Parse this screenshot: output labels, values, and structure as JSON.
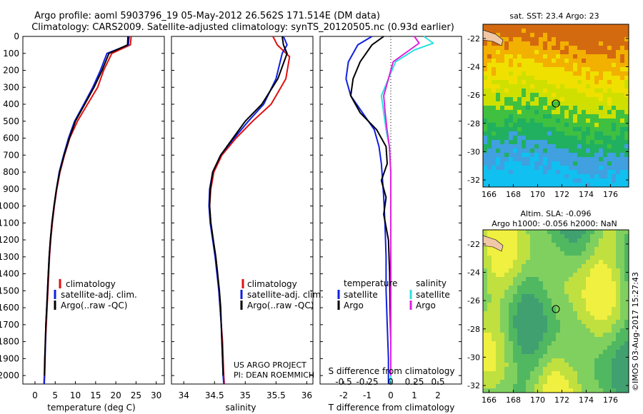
{
  "header": {
    "line1": "Argo profile: aoml 5903796_19 05-May-2012 26.562S 171.514E (DM data)",
    "line2": "Climatology: CARS2009. Satellite-adjusted climatology: synTS_20120505.nc (0.93d earlier)"
  },
  "depth_ticks": [
    0,
    100,
    200,
    300,
    400,
    500,
    600,
    700,
    800,
    900,
    1000,
    1100,
    1200,
    1300,
    1400,
    1500,
    1600,
    1700,
    1800,
    1900,
    2000
  ],
  "colors": {
    "clim": "#e01010",
    "sat": "#1020e0",
    "argo": "#000000",
    "sal_sat": "#30e0e0",
    "sal_argo": "#e020e0"
  },
  "panel_temp": {
    "xlabel": "temperature (deg C)",
    "xticks": [
      0,
      5,
      10,
      15,
      20,
      25,
      30
    ],
    "legend": [
      "climatology",
      "satellite-adj. clim.",
      "Argo(..raw -QC)"
    ]
  },
  "panel_sal": {
    "xlabel": "salinity",
    "xticks": [
      "34",
      "34.5",
      "35",
      "35.5",
      "36"
    ],
    "legend": [
      "climatology",
      "satellite-adj. clim.",
      "Argo(..raw -QC)"
    ],
    "note1": "US ARGO PROJECT",
    "note2": "PI: DEAN ROEMMICH"
  },
  "panel_diff": {
    "legend_temp_title": "temperature",
    "legend_sal_title": "salinity",
    "legend_satellite": "satellite",
    "legend_argo": "Argo",
    "s_label": "S difference from climatology",
    "s_ticks": [
      "-0.5",
      "-0.25",
      "0",
      "0.25",
      "0.5"
    ],
    "t_label": "T difference from climatology",
    "t_ticks": [
      "-2",
      "-1",
      "0",
      "1",
      "2"
    ]
  },
  "map_sst": {
    "title": "sat. SST: 23.4  Argo: 23",
    "yticks": [
      "-22",
      "-24",
      "-26",
      "-28",
      "-30",
      "-32"
    ],
    "xticks": [
      "166",
      "168",
      "170",
      "172",
      "174",
      "176"
    ]
  },
  "map_sla": {
    "title1": "Altim. SLA: -0.096",
    "title2": "Argo h1000: -0.056 h2000: NaN",
    "yticks": [
      "-22",
      "-24",
      "-26",
      "-28",
      "-30",
      "-32"
    ],
    "xticks": [
      "166",
      "168",
      "170",
      "172",
      "174",
      "176"
    ]
  },
  "credit": "©IMOS 03-Aug-2017 15:27:43",
  "chart_data": [
    {
      "type": "line",
      "title": "",
      "xlabel": "temperature (deg C)",
      "ylabel": "",
      "xlim": [
        -3,
        32
      ],
      "ylim": [
        2050,
        0
      ],
      "series": [
        {
          "name": "climatology",
          "color": "#e01010",
          "points": [
            [
              23.8,
              0
            ],
            [
              23.6,
              50
            ],
            [
              19,
              100
            ],
            [
              17,
              200
            ],
            [
              15.5,
              300
            ],
            [
              13,
              400
            ],
            [
              10.5,
              500
            ],
            [
              8.6,
              600
            ],
            [
              7.3,
              700
            ],
            [
              6.2,
              800
            ],
            [
              5.4,
              900
            ],
            [
              4.8,
              1000
            ],
            [
              4.3,
              1100
            ],
            [
              3.9,
              1200
            ],
            [
              3.6,
              1300
            ],
            [
              3.4,
              1400
            ],
            [
              3.2,
              1500
            ],
            [
              3.0,
              1600
            ],
            [
              2.8,
              1700
            ],
            [
              2.6,
              1800
            ],
            [
              2.4,
              1900
            ],
            [
              2.3,
              2000
            ],
            [
              2.2,
              2050
            ]
          ]
        },
        {
          "name": "satellite-adj. clim.",
          "color": "#1020e0",
          "points": [
            [
              23.3,
              0
            ],
            [
              23.1,
              50
            ],
            [
              17.8,
              100
            ],
            [
              16.2,
              200
            ],
            [
              14.3,
              300
            ],
            [
              12.1,
              400
            ],
            [
              9.8,
              500
            ],
            [
              8.3,
              600
            ],
            [
              7.1,
              700
            ],
            [
              6.0,
              800
            ],
            [
              5.3,
              900
            ],
            [
              4.7,
              1000
            ],
            [
              4.2,
              1100
            ],
            [
              3.8,
              1200
            ],
            [
              3.5,
              1300
            ],
            [
              3.3,
              1400
            ],
            [
              3.1,
              1500
            ],
            [
              2.9,
              1600
            ],
            [
              2.7,
              1700
            ],
            [
              2.6,
              1800
            ],
            [
              2.5,
              1900
            ],
            [
              2.4,
              2000
            ],
            [
              2.3,
              2050
            ]
          ]
        },
        {
          "name": "Argo(..raw -QC)",
          "color": "#000000",
          "points": [
            [
              23.0,
              0
            ],
            [
              22.9,
              50
            ],
            [
              18.3,
              100
            ],
            [
              16.6,
              200
            ],
            [
              14.6,
              300
            ],
            [
              12.3,
              400
            ],
            [
              10.0,
              500
            ],
            [
              8.5,
              600
            ],
            [
              7.2,
              700
            ],
            [
              6.1,
              800
            ],
            [
              5.3,
              900
            ],
            [
              4.7,
              1000
            ],
            [
              4.2,
              1100
            ],
            [
              3.8,
              1200
            ],
            [
              3.5,
              1300
            ],
            [
              3.3,
              1400
            ],
            [
              3.1,
              1500
            ],
            [
              2.9,
              1600
            ],
            [
              2.7,
              1700
            ],
            [
              2.55,
              1800
            ],
            [
              2.45,
              1900
            ],
            [
              2.35,
              2000
            ]
          ]
        }
      ]
    },
    {
      "type": "line",
      "title": "",
      "xlabel": "salinity",
      "ylabel": "",
      "xlim": [
        33.8,
        36.1
      ],
      "ylim": [
        2050,
        0
      ],
      "series": [
        {
          "name": "climatology",
          "color": "#e01010",
          "points": [
            [
              35.45,
              0
            ],
            [
              35.52,
              50
            ],
            [
              35.72,
              120
            ],
            [
              35.66,
              250
            ],
            [
              35.42,
              400
            ],
            [
              35.12,
              500
            ],
            [
              34.85,
              600
            ],
            [
              34.62,
              700
            ],
            [
              34.49,
              800
            ],
            [
              34.44,
              900
            ],
            [
              34.42,
              1000
            ],
            [
              34.44,
              1100
            ],
            [
              34.48,
              1200
            ],
            [
              34.52,
              1300
            ],
            [
              34.55,
              1400
            ],
            [
              34.57,
              1500
            ],
            [
              34.59,
              1600
            ],
            [
              34.61,
              1700
            ],
            [
              34.63,
              1800
            ],
            [
              34.64,
              1900
            ],
            [
              34.65,
              2000
            ],
            [
              34.66,
              2050
            ]
          ]
        },
        {
          "name": "satellite-adj. clim.",
          "color": "#1020e0",
          "points": [
            [
              35.62,
              0
            ],
            [
              35.68,
              50
            ],
            [
              35.6,
              100
            ],
            [
              35.5,
              250
            ],
            [
              35.3,
              400
            ],
            [
              35.05,
              500
            ],
            [
              34.82,
              600
            ],
            [
              34.6,
              700
            ],
            [
              34.47,
              800
            ],
            [
              34.42,
              900
            ],
            [
              34.41,
              1000
            ],
            [
              34.43,
              1100
            ],
            [
              34.47,
              1200
            ],
            [
              34.51,
              1300
            ],
            [
              34.54,
              1400
            ],
            [
              34.57,
              1500
            ],
            [
              34.59,
              1600
            ],
            [
              34.61,
              1700
            ],
            [
              34.62,
              1800
            ],
            [
              34.63,
              1900
            ],
            [
              34.64,
              2000
            ],
            [
              34.65,
              2050
            ]
          ]
        },
        {
          "name": "Argo(..raw -QC)",
          "color": "#000000",
          "points": [
            [
              35.6,
              0
            ],
            [
              35.62,
              50
            ],
            [
              35.68,
              100
            ],
            [
              35.53,
              250
            ],
            [
              35.27,
              400
            ],
            [
              35.0,
              500
            ],
            [
              34.8,
              600
            ],
            [
              34.6,
              700
            ],
            [
              34.47,
              800
            ],
            [
              34.43,
              900
            ],
            [
              34.42,
              1000
            ],
            [
              34.44,
              1100
            ],
            [
              34.48,
              1200
            ],
            [
              34.52,
              1300
            ],
            [
              34.55,
              1400
            ],
            [
              34.58,
              1500
            ],
            [
              34.6,
              1600
            ],
            [
              34.61,
              1700
            ],
            [
              34.62,
              1800
            ],
            [
              34.63,
              1900
            ],
            [
              34.64,
              2000
            ]
          ]
        }
      ]
    },
    {
      "type": "line",
      "title": "",
      "xlabel": "T difference from climatology",
      "x2label": "S difference from climatology",
      "xlim": [
        -3,
        3
      ],
      "ylim": [
        2050,
        0
      ],
      "series": [
        {
          "name": "temperature satellite",
          "color": "#1020e0",
          "points": [
            [
              -0.8,
              0
            ],
            [
              -1.4,
              50
            ],
            [
              -1.8,
              150
            ],
            [
              -1.9,
              250
            ],
            [
              -1.7,
              350
            ],
            [
              -1.2,
              450
            ],
            [
              -0.7,
              550
            ],
            [
              -0.5,
              650
            ],
            [
              -0.4,
              750
            ],
            [
              -0.35,
              850
            ],
            [
              -0.3,
              950
            ],
            [
              -0.25,
              1100
            ],
            [
              -0.2,
              1300
            ],
            [
              -0.2,
              1500
            ],
            [
              -0.15,
              1700
            ],
            [
              -0.1,
              1900
            ],
            [
              -0.1,
              2050
            ]
          ]
        },
        {
          "name": "temperature Argo",
          "color": "#000000",
          "points": [
            [
              -0.3,
              0
            ],
            [
              -0.8,
              50
            ],
            [
              -1.3,
              150
            ],
            [
              -1.6,
              250
            ],
            [
              -1.7,
              350
            ],
            [
              -1.3,
              450
            ],
            [
              -0.6,
              550
            ],
            [
              -0.2,
              650
            ],
            [
              -0.15,
              750
            ],
            [
              -0.4,
              850
            ],
            [
              -0.2,
              950
            ],
            [
              -0.3,
              1050
            ],
            [
              -0.1,
              1200
            ],
            [
              -0.05,
              1400
            ],
            [
              -0.03,
              1600
            ],
            [
              0.0,
              1800
            ],
            [
              0.0,
              2000
            ]
          ]
        },
        {
          "name": "salinity satellite",
          "color": "#30e0e0",
          "points": [
            [
              0.7,
              0
            ],
            [
              0.9,
              40
            ],
            [
              0.5,
              80
            ],
            [
              0.1,
              150
            ],
            [
              -0.05,
              250
            ],
            [
              -0.2,
              350
            ],
            [
              -0.15,
              450
            ],
            [
              -0.1,
              550
            ],
            [
              -0.03,
              650
            ],
            [
              0.0,
              800
            ],
            [
              0.0,
              1000
            ],
            [
              0.0,
              1200
            ],
            [
              0.0,
              1500
            ],
            [
              0.0,
              1800
            ],
            [
              0.0,
              2050
            ]
          ]
        },
        {
          "name": "salinity Argo",
          "color": "#e020e0",
          "points": [
            [
              0.5,
              0
            ],
            [
              0.6,
              40
            ],
            [
              0.4,
              80
            ],
            [
              0.05,
              150
            ],
            [
              -0.05,
              250
            ],
            [
              -0.15,
              350
            ],
            [
              -0.12,
              450
            ],
            [
              -0.08,
              550
            ],
            [
              -0.03,
              650
            ],
            [
              0.0,
              800
            ],
            [
              0.0,
              1000
            ],
            [
              0.0,
              1200
            ],
            [
              0.0,
              1500
            ],
            [
              0.0,
              1800
            ],
            [
              0.0,
              2000
            ]
          ]
        }
      ]
    },
    {
      "type": "heatmap",
      "title": "sat. SST: 23.4  Argo: 23",
      "xlim": [
        165.5,
        177.5
      ],
      "ylim": [
        -32.5,
        -21
      ],
      "colormap": [
        "#d46a10",
        "#f2b000",
        "#f0e000",
        "#cfe000",
        "#40c040",
        "#20b060",
        "#40a0e0",
        "#10c0f0"
      ],
      "marker": [
        171.5,
        -26.6
      ]
    },
    {
      "type": "heatmap",
      "title": "Altim. SLA: -0.096",
      "xlim": [
        165.5,
        177.5
      ],
      "ylim": [
        -32.5,
        -21
      ],
      "colormap": [
        "#40a070",
        "#50b860",
        "#80d060",
        "#c0e040",
        "#f0f040"
      ],
      "marker": [
        171.5,
        -26.6
      ]
    }
  ]
}
